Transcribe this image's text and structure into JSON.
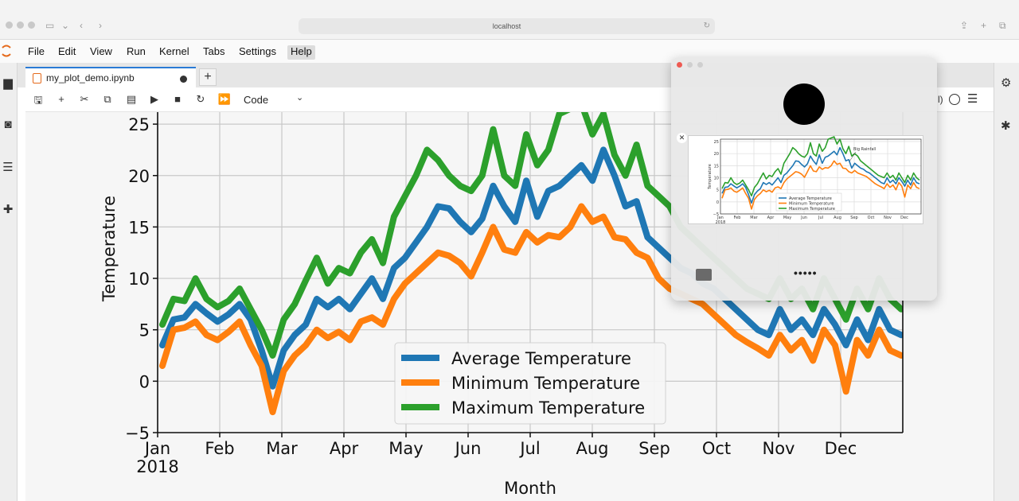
{
  "browser": {
    "url": "localhost"
  },
  "menu": [
    "File",
    "Edit",
    "View",
    "Run",
    "Kernel",
    "Tabs",
    "Settings",
    "Help"
  ],
  "menu_active": "Help",
  "tab": {
    "label": "my_plot_demo.ipynb"
  },
  "toolbar": {
    "cell_type": "Code",
    "kernel_tail": "l)"
  },
  "colors": {
    "avg": "#1f77b4",
    "min": "#ff7f0e",
    "max": "#2ca02c",
    "accent": "#2a7ad5"
  },
  "icons": {
    "sidebar_left": [
      "folder-icon",
      "running-icon",
      "toc-icon",
      "extension-icon"
    ],
    "sidebar_right": [
      "property-inspector-icon",
      "debugger-icon"
    ],
    "toolbar": [
      "save-icon",
      "add-cell-icon",
      "cut-icon",
      "copy-icon",
      "paste-icon",
      "run-icon",
      "stop-icon",
      "restart-icon",
      "fast-forward-icon"
    ]
  },
  "chart_data": {
    "type": "line",
    "xlabel": "Month",
    "ylabel": "Temperature",
    "x_ticks": [
      "Jan",
      "Feb",
      "Mar",
      "Apr",
      "May",
      "Jun",
      "Jul",
      "Aug",
      "Sep",
      "Oct",
      "Nov",
      "Dec"
    ],
    "x_year": "2018",
    "y_ticks": [
      "25",
      "20",
      "15",
      "10",
      "5",
      "0",
      "−5"
    ],
    "ylim": [
      -5,
      26
    ],
    "grid": true,
    "legend_position": "lower-center",
    "series": [
      {
        "name": "Average Temperature",
        "color": "#1f77b4",
        "values": [
          3.5,
          6,
          6.2,
          7.5,
          6.6,
          5.8,
          6.5,
          7.5,
          6,
          3,
          -0.5,
          3,
          4.5,
          5.5,
          8,
          7.2,
          8,
          7,
          8.5,
          10,
          8,
          11,
          12,
          13.5,
          15,
          17,
          16.8,
          15.5,
          14.5,
          15.8,
          19,
          17,
          15.5,
          19.5,
          16,
          18.5,
          19,
          20,
          21,
          19.5,
          22.5,
          20,
          17,
          17.5,
          14,
          13,
          12,
          11,
          10.5,
          9.5,
          9,
          8,
          7,
          6,
          5,
          4.5,
          7,
          5,
          6,
          4.5,
          7,
          5.5,
          3.5,
          6,
          4,
          7,
          5,
          4.5
        ]
      },
      {
        "name": "Minimum Temperature",
        "color": "#ff7f0e",
        "values": [
          1.5,
          5,
          5.2,
          5.8,
          4.5,
          4,
          4.8,
          5.8,
          3.5,
          1.5,
          -3,
          1,
          2.5,
          3.5,
          5,
          4.2,
          4.8,
          4,
          5.8,
          6.2,
          5.5,
          8,
          9.5,
          10.5,
          11.5,
          12.5,
          12.2,
          11.5,
          10.2,
          12.5,
          15,
          12.8,
          12.5,
          14.5,
          13.5,
          14.2,
          14,
          15,
          17,
          15.5,
          16,
          14,
          13.8,
          12.5,
          12,
          10,
          9,
          8.5,
          8,
          7.5,
          6.5,
          5.5,
          4.5,
          3.8,
          3.2,
          2.5,
          4.5,
          3,
          4,
          2,
          5,
          3.5,
          -1,
          4,
          2.5,
          5,
          3,
          2.5
        ]
      },
      {
        "name": "Maximum Temperature",
        "color": "#2ca02c",
        "values": [
          5.5,
          8,
          7.8,
          10,
          8,
          7.2,
          7.8,
          9,
          7,
          5,
          2.5,
          6,
          7.5,
          9.8,
          12,
          9.5,
          11,
          10.5,
          12.5,
          13.8,
          11.5,
          16,
          18,
          20,
          22.5,
          21.5,
          20,
          19,
          18.5,
          20,
          24.5,
          20,
          19,
          24,
          21,
          22.5,
          26,
          26.5,
          27,
          24,
          26,
          22,
          20,
          23,
          19,
          18,
          17,
          15,
          14,
          13,
          12,
          11,
          10,
          9,
          8.5,
          8,
          10,
          8,
          9,
          7,
          10,
          8,
          6,
          9,
          7,
          10,
          8,
          7
        ]
      }
    ]
  },
  "thumbnail_chart": {
    "xlabel": "",
    "ylabel": "Temperature",
    "annotation": "Big Rainfall",
    "legend": [
      "Average Temperature",
      "Minimum Temperature",
      "Maximum Temperature"
    ],
    "x_ticks": [
      "Jan",
      "Feb",
      "Mar",
      "Apr",
      "May",
      "Jun",
      "Jul",
      "Aug",
      "Sep",
      "Oct",
      "Nov",
      "Dec"
    ],
    "x_year": "2018",
    "y_ticks": [
      "25",
      "20",
      "15",
      "10",
      "5",
      "0",
      "−5"
    ]
  },
  "float_window": {
    "dots_label": "•••••"
  }
}
